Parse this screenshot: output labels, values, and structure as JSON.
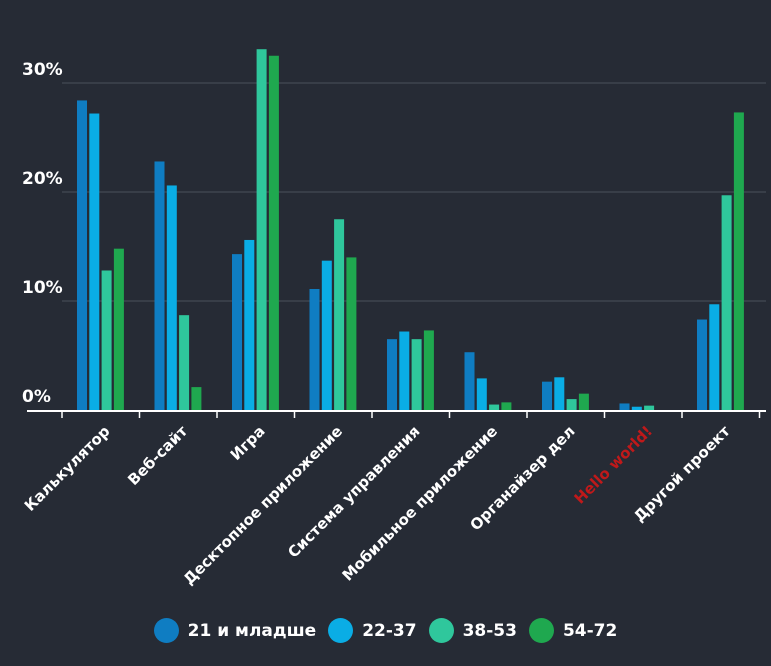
{
  "chart_data": {
    "type": "bar",
    "categories": [
      "Калькулятор",
      "Веб-сайт",
      "Игра",
      "Десктопное приложение",
      "Система управления",
      "Мобильное приложение",
      "Органайзер дел",
      "Hello world!",
      "Другой проект"
    ],
    "highlight_category": {
      "label": "Hello world!",
      "color": "#c0191a"
    },
    "series": [
      {
        "name": "21 и младше",
        "color": "#0f7dc2",
        "values": [
          28.4,
          22.8,
          14.3,
          11.1,
          6.5,
          5.3,
          2.6,
          0.6,
          8.3
        ]
      },
      {
        "name": "22-37",
        "color": "#0aade5",
        "values": [
          27.2,
          20.6,
          15.6,
          13.7,
          7.2,
          2.9,
          3.0,
          0.3,
          9.7
        ]
      },
      {
        "name": "38-53",
        "color": "#2fc79c",
        "values": [
          12.8,
          8.7,
          33.1,
          17.5,
          6.5,
          0.5,
          1.0,
          0.4,
          19.7
        ]
      },
      {
        "name": "54-72",
        "color": "#1fa84f",
        "values": [
          14.8,
          2.1,
          32.5,
          14.0,
          7.3,
          0.7,
          1.5,
          0,
          27.3
        ]
      }
    ],
    "yticks": [
      "0%",
      "10%",
      "20%",
      "30%"
    ],
    "ylim": [
      0,
      35
    ],
    "grid": true,
    "legend": "bottom"
  }
}
